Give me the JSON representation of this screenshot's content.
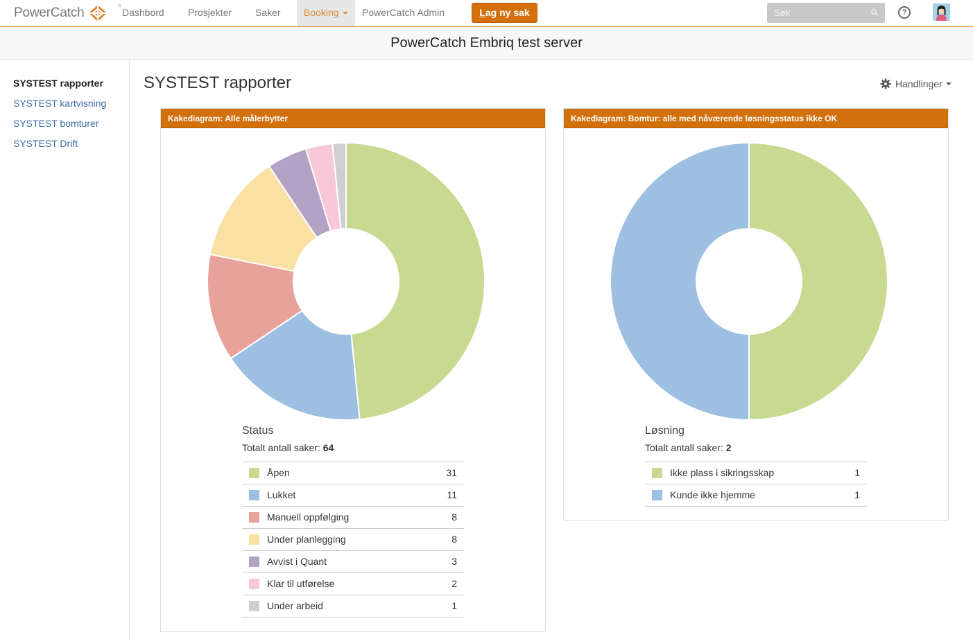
{
  "brand": {
    "name": "PowerCatch",
    "reg": "®"
  },
  "nav": {
    "items": [
      "Dashbord",
      "Prosjekter",
      "Saker",
      "Booking",
      "PowerCatch Admin"
    ],
    "new_case_first": "L",
    "new_case_rest": "ag ny sak",
    "search_placeholder": "Søk",
    "help_glyph": "?"
  },
  "banner": "PowerCatch Embriq test server",
  "sidebar": {
    "items": [
      "SYSTEST rapporter",
      "SYSTEST kartvisning",
      "SYSTEST bomturer",
      "SYSTEST Drift"
    ]
  },
  "main": {
    "title": "SYSTEST rapporter",
    "actions_label": "Handlinger"
  },
  "colors": {
    "accent": "#d2700c",
    "slices": [
      "#c8da91",
      "#9dbfe2",
      "#e8a29c",
      "#f9e1a4",
      "#b2a3c6",
      "#f8c8d8",
      "#cfcfcf"
    ]
  },
  "chart_data": [
    {
      "type": "pie",
      "title": "Kakediagram: Alle målerbytter",
      "legend_title": "Status",
      "total_label": "Totalt antall saker:",
      "total": 64,
      "categories": [
        "Åpen",
        "Lukket",
        "Manuell oppfølging",
        "Under planlegging",
        "Avvist i Quant",
        "Klar til utførelse",
        "Under arbeid"
      ],
      "values": [
        31,
        11,
        8,
        8,
        3,
        2,
        1
      ],
      "colors": [
        "#c8da91",
        "#9dbfe2",
        "#e8a29c",
        "#f9e1a4",
        "#b2a3c6",
        "#f8c8d8",
        "#cfcfcf"
      ]
    },
    {
      "type": "pie",
      "title": "Kakediagram: Bomtur: alle med nåværende løsningsstatus ikke OK",
      "legend_title": "Løsning",
      "total_label": "Totalt antall saker:",
      "total": 2,
      "categories": [
        "Ikke plass i sikringsskap",
        "Kunde ikke hjemme"
      ],
      "values": [
        1,
        1
      ],
      "colors": [
        "#c8da91",
        "#9dbfe2"
      ]
    }
  ]
}
